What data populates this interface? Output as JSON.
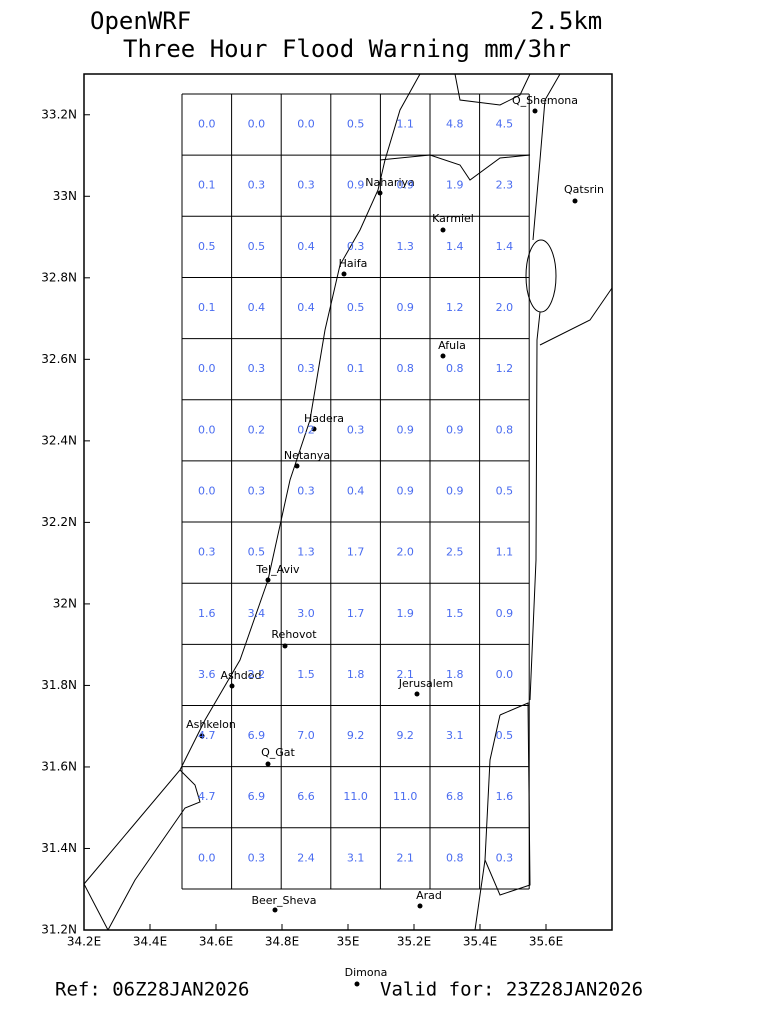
{
  "header": {
    "model": "OpenWRF",
    "resolution": "2.5km",
    "title": "Three Hour Flood Warning mm/3hr"
  },
  "map": {
    "xlim": [
      34.2,
      35.8
    ],
    "ylim": [
      31.2,
      33.3
    ],
    "xticks": [
      {
        "value": 34.2,
        "label": "34.2E"
      },
      {
        "value": 34.4,
        "label": "34.4E"
      },
      {
        "value": 34.6,
        "label": "34.6E"
      },
      {
        "value": 34.8,
        "label": "34.8E"
      },
      {
        "value": 35,
        "label": "35E"
      },
      {
        "value": 35.2,
        "label": "35.2E"
      },
      {
        "value": 35.4,
        "label": "35.4E"
      },
      {
        "value": 35.6,
        "label": "35.6E"
      }
    ],
    "yticks": [
      {
        "value": 31.2,
        "label": "31.2N"
      },
      {
        "value": 31.4,
        "label": "31.4N"
      },
      {
        "value": 31.6,
        "label": "31.6N"
      },
      {
        "value": 31.8,
        "label": "31.8N"
      },
      {
        "value": 32,
        "label": "32N"
      },
      {
        "value": 32.2,
        "label": "32.2N"
      },
      {
        "value": 32.4,
        "label": "32.4N"
      },
      {
        "value": 32.6,
        "label": "32.6N"
      },
      {
        "value": 32.8,
        "label": "32.8N"
      },
      {
        "value": 33,
        "label": "33N"
      },
      {
        "value": 33.2,
        "label": "33.2N"
      }
    ],
    "rows": [
      [
        "0.0",
        "0.0",
        "0.0",
        "0.5",
        "1.1",
        "4.8",
        "4.5"
      ],
      [
        "0.1",
        "0.3",
        "0.3",
        "0.9",
        "0.9",
        "1.9",
        "2.3"
      ],
      [
        "0.5",
        "0.5",
        "0.4",
        "0.3",
        "1.3",
        "1.4",
        "1.4"
      ],
      [
        "0.1",
        "0.4",
        "0.4",
        "0.5",
        "0.9",
        "1.2",
        "2.0"
      ],
      [
        "0.0",
        "0.3",
        "0.3",
        "0.1",
        "0.8",
        "0.8",
        "1.2"
      ],
      [
        "0.0",
        "0.2",
        "0.2",
        "0.3",
        "0.9",
        "0.9",
        "0.8"
      ],
      [
        "0.0",
        "0.3",
        "0.3",
        "0.4",
        "0.9",
        "0.9",
        "0.5"
      ],
      [
        "0.3",
        "0.5",
        "1.3",
        "1.7",
        "2.0",
        "2.5",
        "1.1"
      ],
      [
        "1.6",
        "3.4",
        "3.0",
        "1.7",
        "1.9",
        "1.5",
        "0.9"
      ],
      [
        "3.6",
        "2.2",
        "1.5",
        "1.8",
        "2.1",
        "1.8",
        "0.0"
      ],
      [
        "4.7",
        "6.9",
        "7.0",
        "9.2",
        "9.2",
        "3.1",
        "0.5"
      ],
      [
        "4.7",
        "6.9",
        "6.6",
        "11.0",
        "11.0",
        "6.8",
        "1.6"
      ],
      [
        "0.0",
        "0.3",
        "2.4",
        "3.1",
        "2.1",
        "0.8",
        "0.3"
      ]
    ],
    "cities": [
      "Q_Shemona",
      "Qatsrin",
      "Nahariya",
      "Karmiel",
      "Haifa",
      "Afula",
      "Hadera",
      "Netanya",
      "Tel_Aviv",
      "Rehovot",
      "Ashdod",
      "Jerusalem",
      "Ashkelon",
      "Q_Gat",
      "Beer_Sheva",
      "Arad",
      "Dimona"
    ]
  },
  "footer": {
    "ref": "Ref: 06Z28JAN2026",
    "valid": "Valid for: 23Z28JAN2026"
  }
}
